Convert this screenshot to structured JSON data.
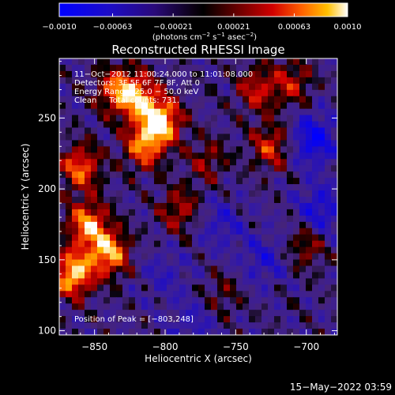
{
  "chart_data": {
    "type": "heatmap",
    "title": "Reconstructed RHESSI Image",
    "xlabel": "Heliocentric X (arcsec)",
    "ylabel": "Heliocentric Y (arcsec)",
    "xlim": [
      -875,
      -678
    ],
    "ylim": [
      97,
      292
    ],
    "x_ticks": [
      -850,
      -800,
      -750,
      -700
    ],
    "x_tick_labels": [
      "−850",
      "−800",
      "−750",
      "−700"
    ],
    "y_ticks": [
      100,
      150,
      200,
      250
    ],
    "y_tick_labels": [
      "100",
      "150",
      "200",
      "250"
    ],
    "colorbar": {
      "range": [
        -0.001,
        0.001
      ],
      "ticks": [
        -0.001,
        -0.00063,
        -0.00021,
        0.00021,
        0.00063,
        0.001
      ],
      "tick_labels": [
        "−0.0010",
        "−0.00063",
        "−0.00021",
        "0.00021",
        "0.00063",
        "0.0010"
      ],
      "units_main": "(photons cm",
      "units_sup1": "−2",
      "units_mid": " s",
      "units_sup2": "−1",
      "units_mid2": " asec",
      "units_sup3": "−2",
      "units_end": ")"
    },
    "annotations": [
      "11−Oct−2012 11:00:24.000 to 11:01:08.000",
      "Detectors: 3F 5F 6F 7F 8F, Att 0",
      "Energy Range: 25.0 − 50.0 keV",
      "Clean     Total counts: 731."
    ],
    "peak_label": "Position of Peak = [−803,248]",
    "peak": [
      -803,
      248
    ],
    "bright_regions": [
      {
        "x": -865,
        "y": 140,
        "level": 0.95
      },
      {
        "x": -855,
        "y": 175,
        "level": 0.8
      },
      {
        "x": -840,
        "y": 155,
        "level": 0.85
      },
      {
        "x": -860,
        "y": 215,
        "level": 0.7
      },
      {
        "x": -835,
        "y": 270,
        "level": 0.6
      },
      {
        "x": -803,
        "y": 248,
        "level": 1.0
      },
      {
        "x": -815,
        "y": 230,
        "level": 0.7
      },
      {
        "x": -820,
        "y": 265,
        "level": 0.75
      },
      {
        "x": -790,
        "y": 185,
        "level": 0.45
      },
      {
        "x": -770,
        "y": 220,
        "level": 0.35
      },
      {
        "x": -725,
        "y": 230,
        "level": 0.55
      },
      {
        "x": -735,
        "y": 270,
        "level": 0.5
      },
      {
        "x": -710,
        "y": 275,
        "level": 0.45
      },
      {
        "x": -700,
        "y": 160,
        "level": 0.4
      },
      {
        "x": -760,
        "y": 125,
        "level": 0.25
      }
    ],
    "dim_regions": [
      {
        "x": -695,
        "y": 235,
        "level": 0.9
      },
      {
        "x": -690,
        "y": 185,
        "level": 0.7
      },
      {
        "x": -730,
        "y": 150,
        "level": 0.5
      },
      {
        "x": -760,
        "y": 175,
        "level": 0.45
      },
      {
        "x": -780,
        "y": 105,
        "level": 0.4
      },
      {
        "x": -800,
        "y": 140,
        "level": 0.35
      }
    ]
  },
  "footer": {
    "timestamp": "15−May−2022 03:59"
  },
  "colors": {
    "background": "#000000",
    "foreground": "#ffffff"
  }
}
